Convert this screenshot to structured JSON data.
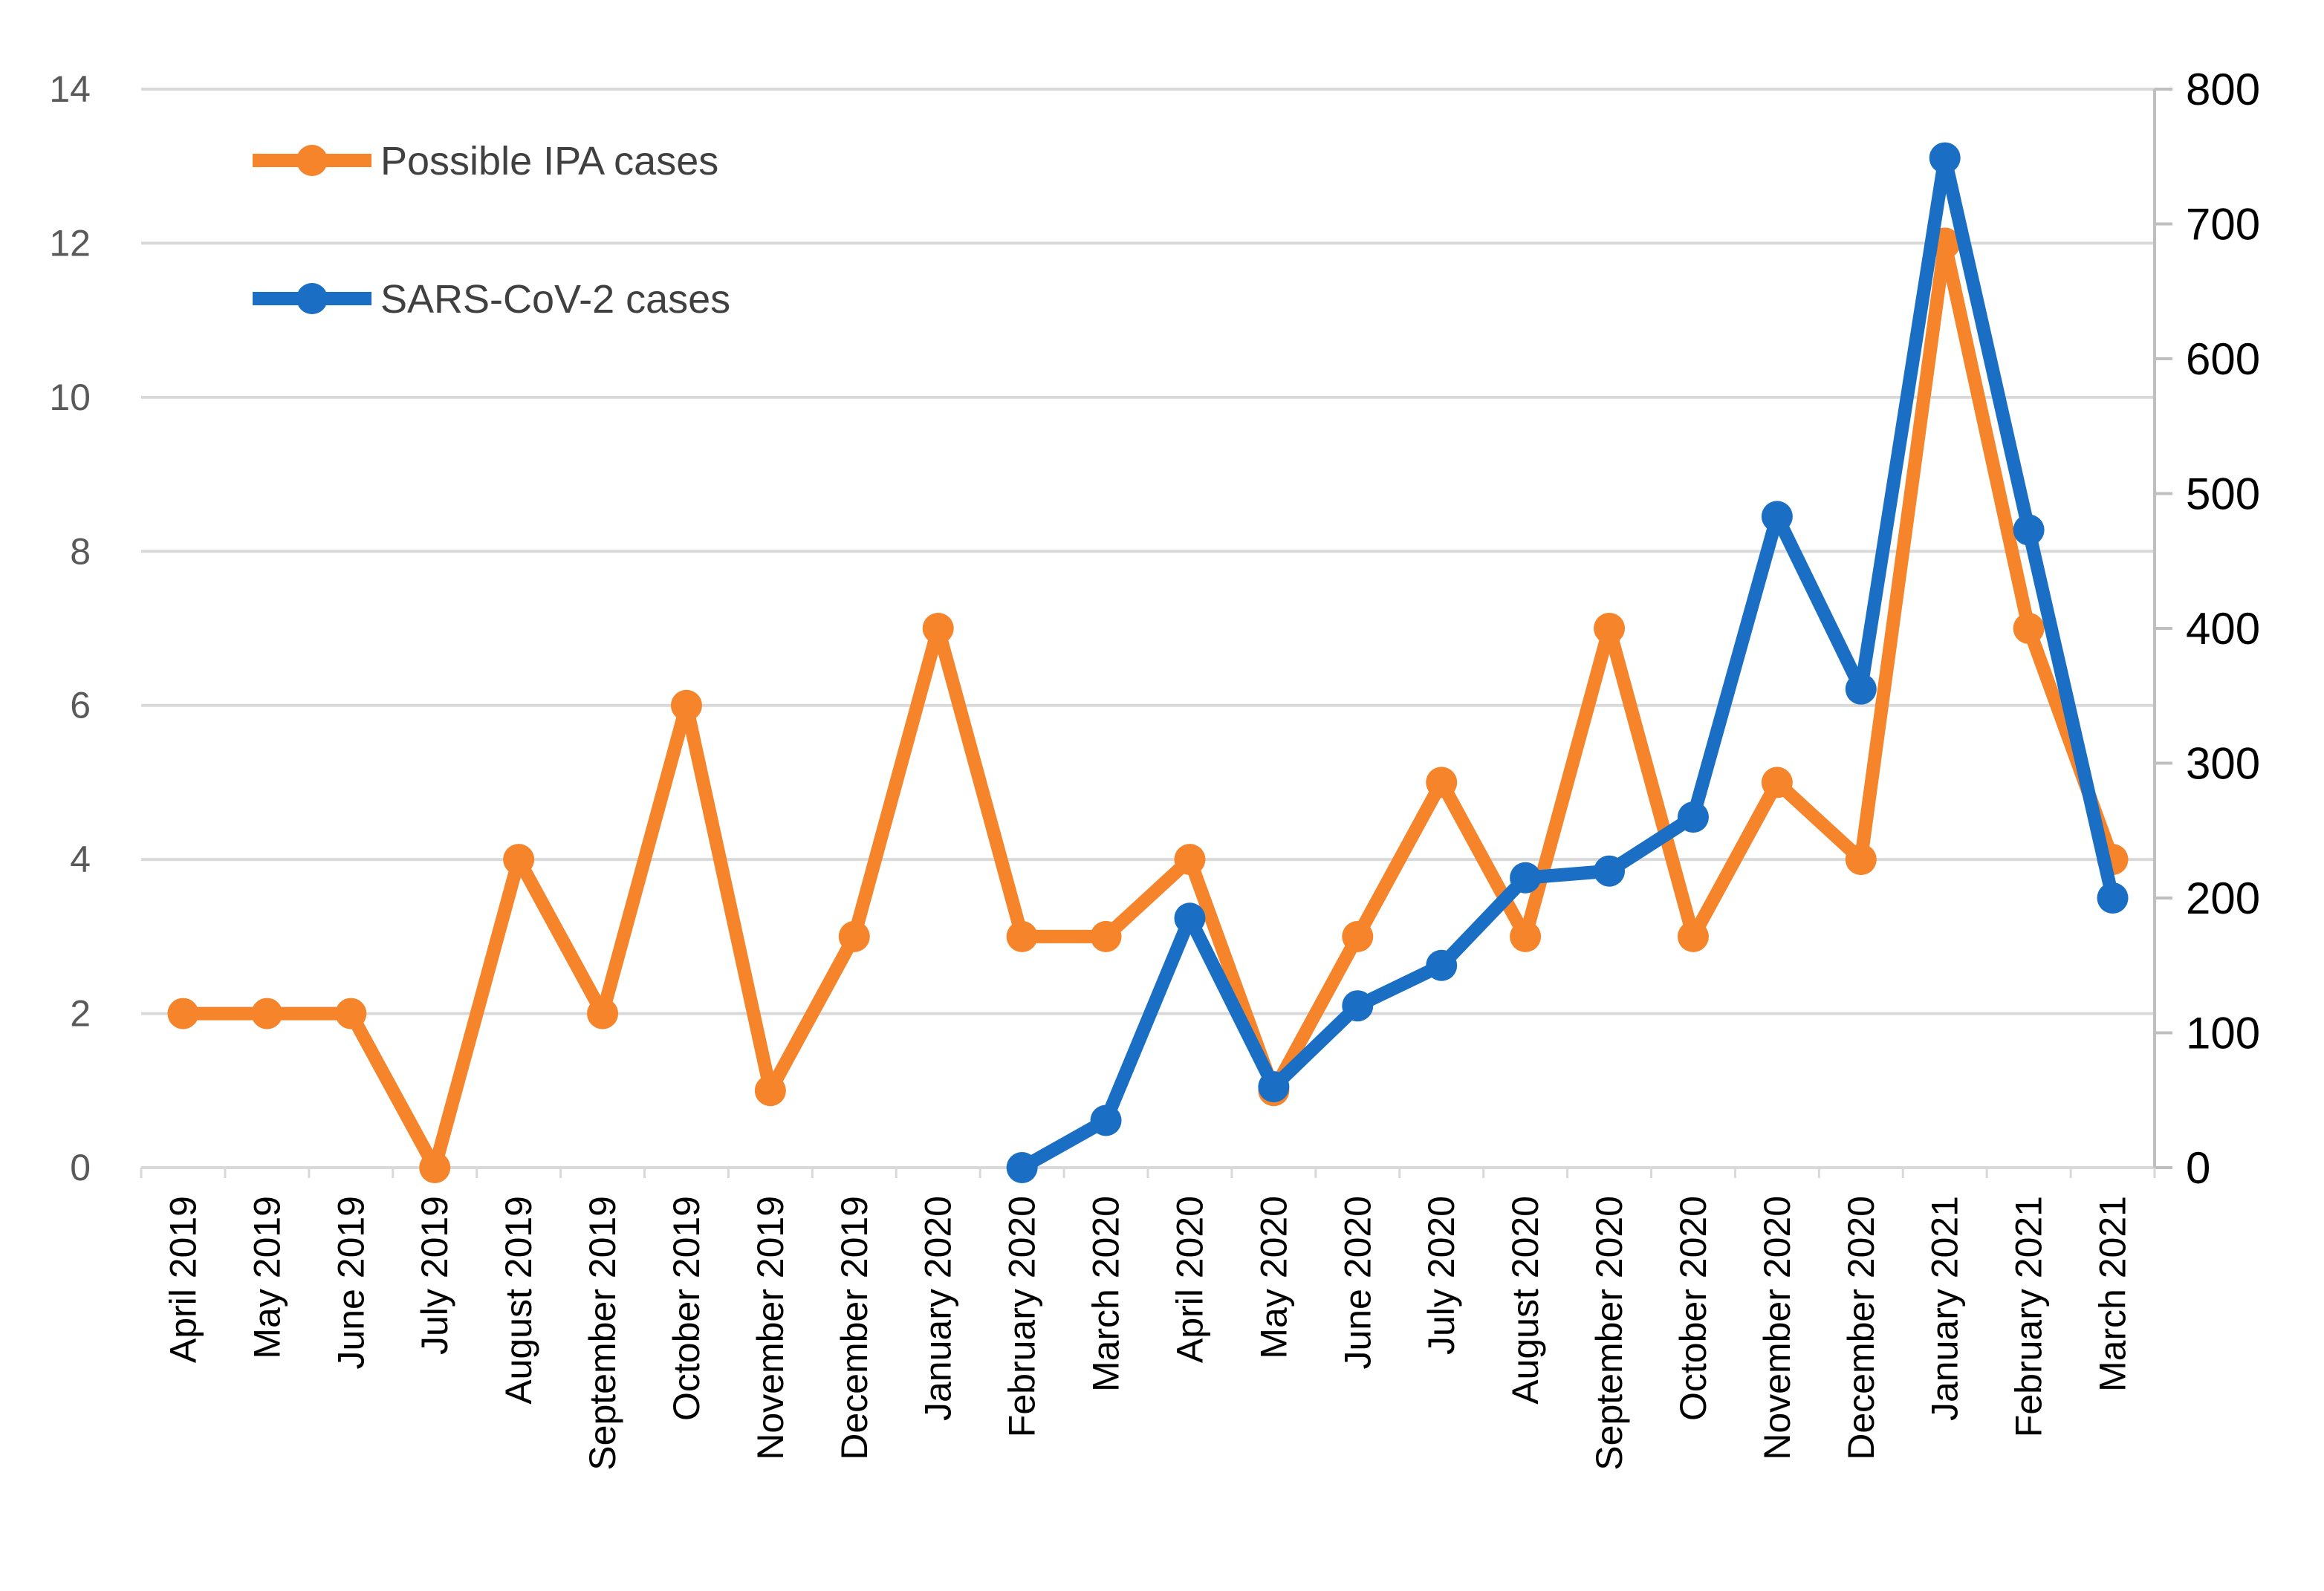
{
  "chart_data": {
    "type": "line",
    "title": "",
    "xlabel": "",
    "ylabel": "",
    "ylabel_right": "",
    "categories": [
      "April 2019",
      "May 2019",
      "June 2019",
      "July 2019",
      "August 2019",
      "September 2019",
      "October 2019",
      "November 2019",
      "December 2019",
      "January 2020",
      "February 2020",
      "March 2020",
      "April 2020",
      "May 2020",
      "June 2020",
      "July 2020",
      "August 2020",
      "September 2020",
      "October 2020",
      "November 2020",
      "December 2020",
      "January 2021",
      "February 2021",
      "March 2021"
    ],
    "ylim": [
      0,
      14
    ],
    "yticks": [
      0,
      2,
      4,
      6,
      8,
      10,
      12,
      14
    ],
    "ylim_right": [
      0,
      800
    ],
    "yticks_right": [
      0,
      100,
      200,
      300,
      400,
      500,
      600,
      700,
      800
    ],
    "grid": true,
    "legend_position": "top-left",
    "series": [
      {
        "name": "Possible IPA cases",
        "axis": "left",
        "color": "#f5842b",
        "values": [
          2,
          2,
          2,
          0,
          4,
          2,
          6,
          1,
          3,
          7,
          3,
          3,
          4,
          1,
          3,
          5,
          3,
          7,
          3,
          5,
          4,
          12,
          7,
          4
        ]
      },
      {
        "name": "SARS-CoV-2 cases",
        "axis": "right",
        "color": "#1a6fc4",
        "values": [
          null,
          null,
          null,
          null,
          null,
          null,
          null,
          null,
          null,
          null,
          0,
          35,
          185,
          60,
          120,
          150,
          215,
          220,
          260,
          483,
          355,
          749,
          473,
          200
        ]
      }
    ]
  }
}
